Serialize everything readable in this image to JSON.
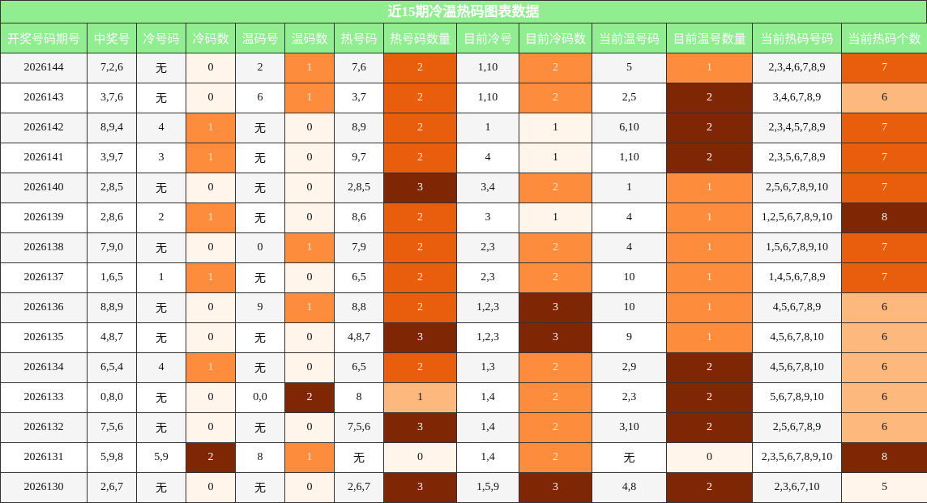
{
  "title": "近15期冷温热码图表数据",
  "table": {
    "header": [
      "开奖号码期号",
      "中奖号",
      "冷号码",
      "冷码数",
      "温码号",
      "温码数",
      "热号码",
      "热号码数量",
      "目前冷号",
      "目前冷码数",
      "当前温号码",
      "目前温号数量",
      "当前热码号码",
      "当前热码个数"
    ],
    "rows": [
      [
        "2026144",
        "7,2,6",
        "无",
        0,
        "2",
        1,
        "7,6",
        2,
        "1,10",
        2,
        "5",
        1,
        "2,3,4,6,7,8,9",
        7
      ],
      [
        "2026143",
        "3,7,6",
        "无",
        0,
        "6",
        1,
        "3,7",
        2,
        "1,10",
        2,
        "2,5",
        2,
        "3,4,6,7,8,9",
        6
      ],
      [
        "2026142",
        "8,9,4",
        "4",
        1,
        "无",
        0,
        "8,9",
        2,
        "1",
        1,
        "6,10",
        2,
        "2,3,4,5,7,8,9",
        7
      ],
      [
        "2026141",
        "3,9,7",
        "3",
        1,
        "无",
        0,
        "9,7",
        2,
        "4",
        1,
        "1,10",
        2,
        "2,3,5,6,7,8,9",
        7
      ],
      [
        "2026140",
        "2,8,5",
        "无",
        0,
        "无",
        0,
        "2,8,5",
        3,
        "3,4",
        2,
        "1",
        1,
        "2,5,6,7,8,9,10",
        7
      ],
      [
        "2026139",
        "2,8,6",
        "2",
        1,
        "无",
        0,
        "8,6",
        2,
        "3",
        1,
        "4",
        1,
        "1,2,5,6,7,8,9,10",
        8
      ],
      [
        "2026138",
        "7,9,0",
        "无",
        0,
        "0",
        1,
        "7,9",
        2,
        "2,3",
        2,
        "4",
        1,
        "1,5,6,7,8,9,10",
        7
      ],
      [
        "2026137",
        "1,6,5",
        "1",
        1,
        "无",
        0,
        "6,5",
        2,
        "2,3",
        2,
        "10",
        1,
        "1,4,5,6,7,8,9",
        7
      ],
      [
        "2026136",
        "8,8,9",
        "无",
        0,
        "9",
        1,
        "8,8",
        2,
        "1,2,3",
        3,
        "10",
        1,
        "4,5,6,7,8,9",
        6
      ],
      [
        "2026135",
        "4,8,7",
        "无",
        0,
        "无",
        0,
        "4,8,7",
        3,
        "1,2,3",
        3,
        "9",
        1,
        "4,5,6,7,8,10",
        6
      ],
      [
        "2026134",
        "6,5,4",
        "4",
        1,
        "无",
        0,
        "6,5",
        2,
        "1,3",
        2,
        "2,9",
        2,
        "4,5,6,7,8,10",
        6
      ],
      [
        "2026133",
        "0,8,0",
        "无",
        0,
        "0,0",
        2,
        "8",
        1,
        "1,4",
        2,
        "2,3",
        2,
        "5,6,7,8,9,10",
        6
      ],
      [
        "2026132",
        "7,5,6",
        "无",
        0,
        "无",
        0,
        "7,5,6",
        3,
        "1,4",
        2,
        "3,10",
        2,
        "2,5,6,7,8,9",
        6
      ],
      [
        "2026131",
        "5,9,8",
        "5,9",
        2,
        "8",
        1,
        "无",
        0,
        "1,4",
        2,
        "无",
        0,
        "2,3,5,6,7,8,9,10",
        8
      ],
      [
        "2026130",
        "2,6,7",
        "无",
        0,
        "无",
        0,
        "2,6,7",
        3,
        "1,5,9",
        3,
        "4,8",
        2,
        "2,3,6,7,10",
        5
      ]
    ]
  }
}
